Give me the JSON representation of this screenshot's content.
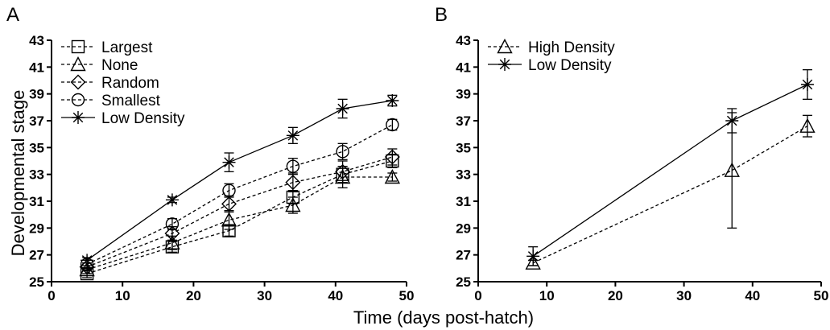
{
  "figure": {
    "xlabel": "Time (days post-hatch)",
    "ylabel": "Developmental stage"
  },
  "chart_data": [
    {
      "panel": "A",
      "type": "line",
      "xlim": [
        0,
        50
      ],
      "ylim": [
        25,
        43
      ],
      "xticks": [
        0,
        10,
        20,
        30,
        40,
        50
      ],
      "yticks": [
        25,
        27,
        29,
        31,
        33,
        35,
        37,
        39,
        41,
        43
      ],
      "legend_position": "top-left",
      "series": [
        {
          "name": "Largest",
          "marker": "square",
          "dash": true,
          "x": [
            5,
            17,
            25,
            34,
            41,
            48
          ],
          "y": [
            25.6,
            27.6,
            28.8,
            31.3,
            33.0,
            34.0
          ],
          "err": [
            0.3,
            0.4,
            0.4,
            0.5,
            0.6,
            0.5
          ]
        },
        {
          "name": "None",
          "marker": "triangle",
          "dash": true,
          "x": [
            5,
            17,
            25,
            34,
            41,
            48
          ],
          "y": [
            25.9,
            27.9,
            29.6,
            30.7,
            32.8,
            32.8
          ],
          "err": [
            0.3,
            0.5,
            0.7,
            0.6,
            0.8,
            0.3
          ]
        },
        {
          "name": "Random",
          "marker": "diamond",
          "dash": true,
          "x": [
            5,
            17,
            25,
            34,
            41,
            48
          ],
          "y": [
            26.1,
            28.6,
            30.8,
            32.4,
            33.2,
            34.3
          ],
          "err": [
            0.3,
            0.5,
            0.6,
            0.7,
            0.8,
            0.6
          ]
        },
        {
          "name": "Smallest",
          "marker": "circle",
          "dash": true,
          "x": [
            5,
            17,
            25,
            34,
            41,
            48
          ],
          "y": [
            26.3,
            29.3,
            31.8,
            33.6,
            34.7,
            36.7
          ],
          "err": [
            0.3,
            0.4,
            0.5,
            0.6,
            0.6,
            0.4
          ]
        },
        {
          "name": "Low Density",
          "marker": "star",
          "dash": false,
          "x": [
            5,
            17,
            25,
            34,
            41,
            48
          ],
          "y": [
            26.6,
            31.1,
            33.9,
            35.9,
            37.9,
            38.5
          ],
          "err": [
            0.2,
            0.2,
            0.7,
            0.6,
            0.7,
            0.4
          ]
        }
      ]
    },
    {
      "panel": "B",
      "type": "line",
      "xlim": [
        0,
        50
      ],
      "ylim": [
        25,
        43
      ],
      "xticks": [
        0,
        10,
        20,
        30,
        40,
        50
      ],
      "yticks": [
        25,
        27,
        29,
        31,
        33,
        35,
        37,
        39,
        41,
        43
      ],
      "legend_position": "top-left",
      "series": [
        {
          "name": "High Density",
          "marker": "triangle",
          "dash": true,
          "x": [
            8,
            37,
            48
          ],
          "y": [
            26.4,
            33.3,
            36.6
          ],
          "err": [
            0.2,
            4.3,
            0.8
          ]
        },
        {
          "name": "Low Density",
          "marker": "star",
          "dash": false,
          "x": [
            8,
            37,
            48
          ],
          "y": [
            26.9,
            37.0,
            39.7
          ],
          "err": [
            0.7,
            0.9,
            1.1
          ]
        }
      ]
    }
  ]
}
